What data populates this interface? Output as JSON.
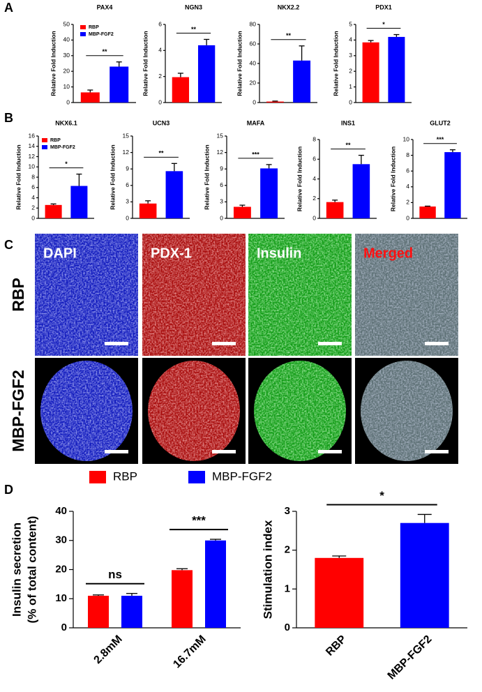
{
  "panels": [
    "A",
    "B",
    "C",
    "D"
  ],
  "micrographs": {
    "columns": [
      "DAPI",
      "PDX-1",
      "Insulin",
      "Merged"
    ],
    "rows": [
      "RBP",
      "MBP-FGF2"
    ]
  },
  "chart_data": [
    {
      "type": "bar",
      "title": "PAX4",
      "ylabel": "Relative Fold Induction",
      "ylim": [
        0,
        50
      ],
      "yticks": [
        0,
        10,
        20,
        30,
        40,
        50
      ],
      "annotation": "**",
      "series": [
        {
          "name": "RBP",
          "color": "#ff0000",
          "values": [
            6.5
          ],
          "errors": [
            1.5
          ]
        },
        {
          "name": "MBP-FGF2",
          "color": "#0000ff",
          "values": [
            23
          ],
          "errors": [
            3
          ]
        }
      ]
    },
    {
      "type": "bar",
      "title": "NGN3",
      "ylabel": "Relative Fold Induction",
      "ylim": [
        0,
        6
      ],
      "yticks": [
        0,
        2,
        4,
        6
      ],
      "annotation": "**",
      "series": [
        {
          "color": "#ff0000",
          "values": [
            1.95
          ],
          "errors": [
            0.3
          ]
        },
        {
          "color": "#0000ff",
          "values": [
            4.4
          ],
          "errors": [
            0.45
          ]
        }
      ]
    },
    {
      "type": "bar",
      "title": "NKX2.2",
      "ylabel": "Relative Fold Induction",
      "ylim": [
        0,
        80
      ],
      "yticks": [
        0,
        20,
        40,
        60,
        80
      ],
      "annotation": "**",
      "series": [
        {
          "color": "#ff0000",
          "values": [
            1
          ],
          "errors": [
            0.5
          ]
        },
        {
          "color": "#0000ff",
          "values": [
            43
          ],
          "errors": [
            15
          ]
        }
      ]
    },
    {
      "type": "bar",
      "title": "PDX1",
      "ylabel": "Relative Fold Induction",
      "ylim": [
        0,
        5
      ],
      "yticks": [
        0,
        1,
        2,
        3,
        4,
        5
      ],
      "annotation": "*",
      "series": [
        {
          "color": "#ff0000",
          "values": [
            3.85
          ],
          "errors": [
            0.12
          ]
        },
        {
          "color": "#0000ff",
          "values": [
            4.2
          ],
          "errors": [
            0.15
          ]
        }
      ]
    },
    {
      "type": "bar",
      "title": "NKX6.1",
      "ylabel": "Relative Fold Induction",
      "ylim": [
        0,
        16
      ],
      "yticks": [
        0,
        2,
        4,
        6,
        8,
        10,
        12,
        14,
        16
      ],
      "annotation": "*",
      "series": [
        {
          "name": "RBP",
          "color": "#ff0000",
          "values": [
            2.6
          ],
          "errors": [
            0.2
          ]
        },
        {
          "name": "MBP-FGF2",
          "color": "#0000ff",
          "values": [
            6.3
          ],
          "errors": [
            2.3
          ]
        }
      ]
    },
    {
      "type": "bar",
      "title": "UCN3",
      "ylabel": "Relative Fold Induction",
      "ylim": [
        0,
        15
      ],
      "yticks": [
        0,
        3,
        6,
        9,
        12,
        15
      ],
      "annotation": "**",
      "series": [
        {
          "color": "#ff0000",
          "values": [
            2.7
          ],
          "errors": [
            0.5
          ]
        },
        {
          "color": "#0000ff",
          "values": [
            8.6
          ],
          "errors": [
            1.4
          ]
        }
      ]
    },
    {
      "type": "bar",
      "title": "MAFA",
      "ylabel": "Relative Fold Induction",
      "ylim": [
        0,
        15
      ],
      "yticks": [
        0,
        3,
        6,
        9,
        12,
        15
      ],
      "annotation": "***",
      "series": [
        {
          "color": "#ff0000",
          "values": [
            2.1
          ],
          "errors": [
            0.3
          ]
        },
        {
          "color": "#0000ff",
          "values": [
            9.1
          ],
          "errors": [
            0.7
          ]
        }
      ]
    },
    {
      "type": "bar",
      "title": "INS1",
      "ylabel": "Relative Fold Induction",
      "ylim": [
        0,
        8
      ],
      "yticks": [
        0,
        2,
        4,
        6,
        8
      ],
      "annotation": "**",
      "series": [
        {
          "color": "#ff0000",
          "values": [
            1.65
          ],
          "errors": [
            0.2
          ]
        },
        {
          "color": "#0000ff",
          "values": [
            5.5
          ],
          "errors": [
            0.9
          ]
        }
      ]
    },
    {
      "type": "bar",
      "title": "GLUT2",
      "ylabel": "Relative Fold Induction",
      "ylim": [
        0,
        10
      ],
      "yticks": [
        0,
        2,
        4,
        6,
        8,
        10
      ],
      "annotation": "***",
      "series": [
        {
          "color": "#ff0000",
          "values": [
            1.5
          ],
          "errors": [
            0.05
          ]
        },
        {
          "color": "#0000ff",
          "values": [
            8.4
          ],
          "errors": [
            0.3
          ]
        }
      ]
    },
    {
      "type": "bar",
      "ylabel": [
        "Insulin secretion",
        "(% of total content)"
      ],
      "ylim": [
        0,
        40
      ],
      "yticks": [
        0,
        10,
        20,
        30,
        40
      ],
      "categories": [
        "2.8mM",
        "16.7mM"
      ],
      "annotations": [
        "ns",
        "***"
      ],
      "series": [
        {
          "name": "RBP",
          "color": "#ff0000",
          "values": [
            11,
            19.8
          ],
          "errors": [
            0.3,
            0.5
          ]
        },
        {
          "name": "MBP-FGF2",
          "color": "#0000ff",
          "values": [
            11,
            30
          ],
          "errors": [
            0.8,
            0.4
          ]
        }
      ]
    },
    {
      "type": "bar",
      "ylabel": "Stimulation index",
      "ylim": [
        0,
        3
      ],
      "yticks": [
        0,
        1,
        2,
        3
      ],
      "annotation": "*",
      "categories": [
        "RBP",
        "MBP-FGF2"
      ],
      "values": [
        1.8,
        2.7
      ],
      "errors": [
        0.05,
        0.22
      ],
      "colors": [
        "#ff0000",
        "#0000ff"
      ]
    }
  ]
}
